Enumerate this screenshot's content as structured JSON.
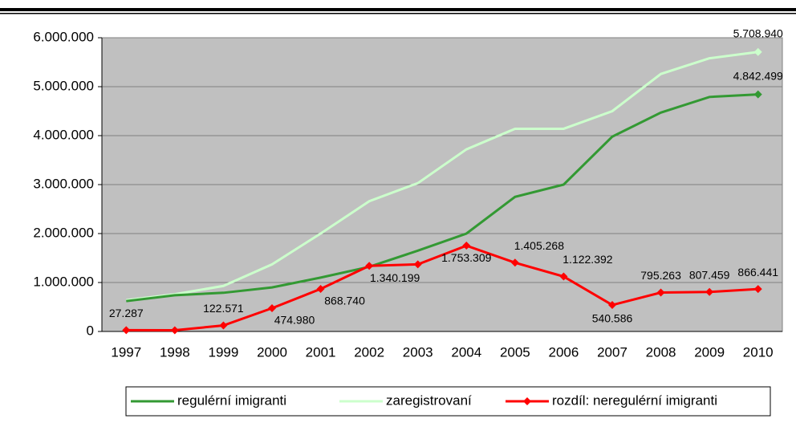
{
  "chart_data": {
    "type": "line",
    "categories": [
      "1997",
      "1998",
      "1999",
      "2000",
      "2001",
      "2002",
      "2003",
      "2004",
      "2005",
      "2006",
      "2007",
      "2008",
      "2009",
      "2010"
    ],
    "ylim": [
      0,
      6000000
    ],
    "yticks": [
      0,
      {
        "value": 1000000,
        "label": "1.000.000"
      },
      {
        "value": 2000000,
        "label": "2.000.000"
      },
      {
        "value": 3000000,
        "label": "3.000.000"
      },
      {
        "value": 4000000,
        "label": "4.000.000"
      },
      {
        "value": 5000000,
        "label": "5.000.000"
      },
      {
        "value": 6000000,
        "label": "6.000.000"
      }
    ],
    "grid": true,
    "legend": "bottom",
    "series": [
      {
        "name": "regulérní imigranti",
        "color": "#339933",
        "values": [
          620000,
          740000,
          790000,
          900000,
          1100000,
          1320000,
          1650000,
          2000000,
          2750000,
          3000000,
          3980000,
          4470000,
          4790000,
          4842499
        ],
        "value_labels": [
          null,
          null,
          null,
          null,
          null,
          null,
          null,
          null,
          null,
          null,
          null,
          null,
          null,
          "4.842.499"
        ]
      },
      {
        "name": "zaregistrovaní",
        "color": "#ccffcc",
        "values": [
          640000,
          760000,
          930000,
          1370000,
          2000000,
          2660000,
          3030000,
          3720000,
          4140000,
          4140000,
          4500000,
          5260000,
          5580000,
          5708940
        ],
        "value_labels": [
          null,
          null,
          null,
          null,
          null,
          null,
          null,
          null,
          null,
          null,
          null,
          null,
          null,
          "5.708.940"
        ]
      },
      {
        "name": "rozdíl: neregulérní imigranti",
        "color": "#ff0000",
        "values": [
          27287,
          25000,
          122571,
          474980,
          868740,
          1340199,
          1370000,
          1753309,
          1405268,
          1122392,
          540586,
          795263,
          807459,
          866441
        ],
        "value_labels": [
          "27.287",
          null,
          "122.571",
          "474.980",
          "868.740",
          "1.340.199",
          null,
          "1.753.309",
          "1.405.268",
          "1.122.392",
          "540.586",
          "795.263",
          "807.459",
          "866.441"
        ]
      }
    ]
  }
}
